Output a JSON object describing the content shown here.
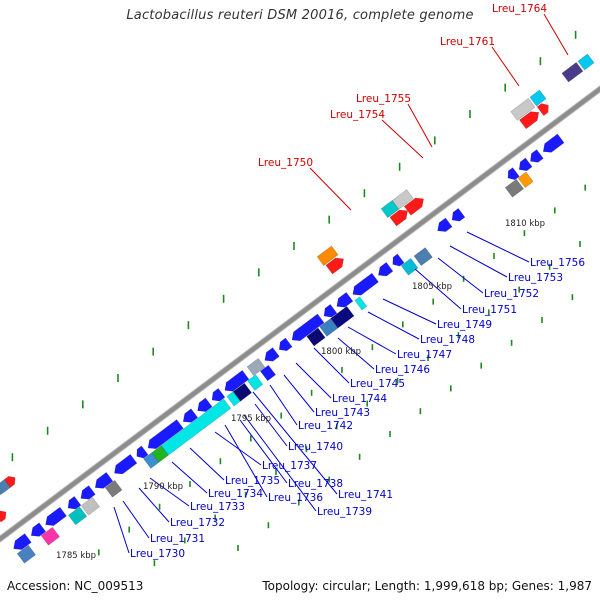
{
  "title": "Lactobacillus reuteri DSM 20016, complete genome",
  "footer": {
    "accession": "Accession: NC_009513",
    "summary": "Topology: circular; Length: 1,999,618 bp; Genes: 1,987"
  },
  "colors": {
    "backbone": "#8c8c8c",
    "forward_label": "#cc0000",
    "reverse_label": "#0000cc",
    "tick": "#1e8a1e"
  },
  "kbp_marks": [
    "1785 kbp",
    "1790 kbp",
    "1795 kbp",
    "1800 kbp",
    "1805 kbp",
    "1810 kbp"
  ],
  "forward_genes": [
    "Lreu_1750",
    "Lreu_1754",
    "Lreu_1755",
    "Lreu_1761",
    "Lreu_1764"
  ],
  "reverse_genes": [
    "Lreu_1730",
    "Lreu_1731",
    "Lreu_1732",
    "Lreu_1733",
    "Lreu_1734",
    "Lreu_1735",
    "Lreu_1736",
    "Lreu_1737",
    "Lreu_1738",
    "Lreu_1739",
    "Lreu_1740",
    "Lreu_1741",
    "Lreu_1742",
    "Lreu_1743",
    "Lreu_1744",
    "Lreu_1745",
    "Lreu_1746",
    "Lreu_1747",
    "Lreu_1748",
    "Lreu_1749",
    "Lreu_1751",
    "Lreu_1752",
    "Lreu_1753",
    "Lreu_1756"
  ]
}
